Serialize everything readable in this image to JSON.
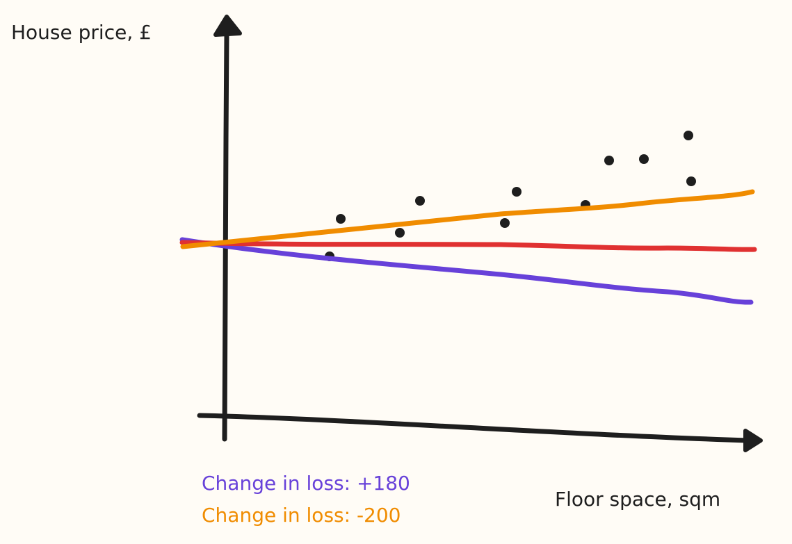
{
  "y_axis_label": "House price, £",
  "x_axis_label": "Floor space, sqm",
  "colors": {
    "background": "#fffcf6",
    "axis": "#1e1e1e",
    "points": "#1e1e1e",
    "purple_line": "#6741d9",
    "red_line": "#e03131",
    "orange_line": "#f08c00"
  },
  "annotations": {
    "purple_loss": "Change in loss: +180",
    "orange_loss": "Change in loss: -200"
  }
}
